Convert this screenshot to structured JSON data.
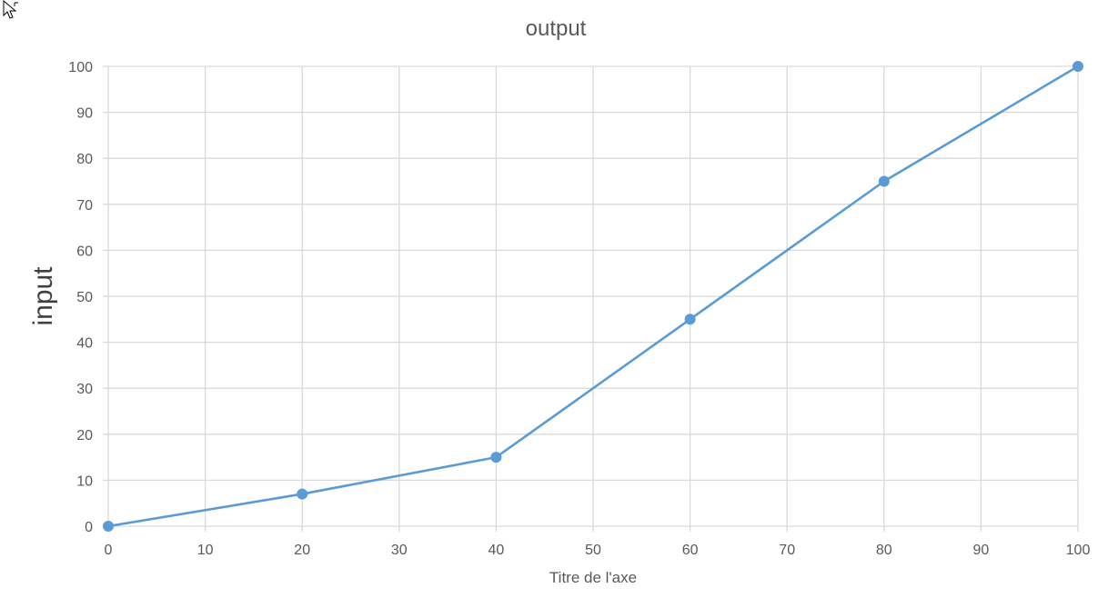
{
  "chart_data": {
    "type": "scatter",
    "title": "output",
    "xlabel": "Titre de l'axe",
    "ylabel": "input",
    "xlim": [
      0,
      100
    ],
    "ylim": [
      0,
      100
    ],
    "x_ticks": [
      "0",
      "10",
      "20",
      "30",
      "40",
      "50",
      "60",
      "70",
      "80",
      "90",
      "100"
    ],
    "y_ticks": [
      "0",
      "10",
      "20",
      "30",
      "40",
      "50",
      "60",
      "70",
      "80",
      "90",
      "100"
    ],
    "grid": true,
    "series": [
      {
        "x": [
          0,
          20,
          40,
          60,
          80,
          100
        ],
        "values": [
          0,
          7,
          15,
          45,
          75,
          100
        ],
        "color": "#5B9BD5",
        "marker": "circle",
        "line": "straight"
      }
    ]
  },
  "colors": {
    "series": "#5B9BD5",
    "grid": "#D9D9D9",
    "text": "#595959"
  },
  "icons": {
    "cursor": "mouse-pointer-icon"
  }
}
